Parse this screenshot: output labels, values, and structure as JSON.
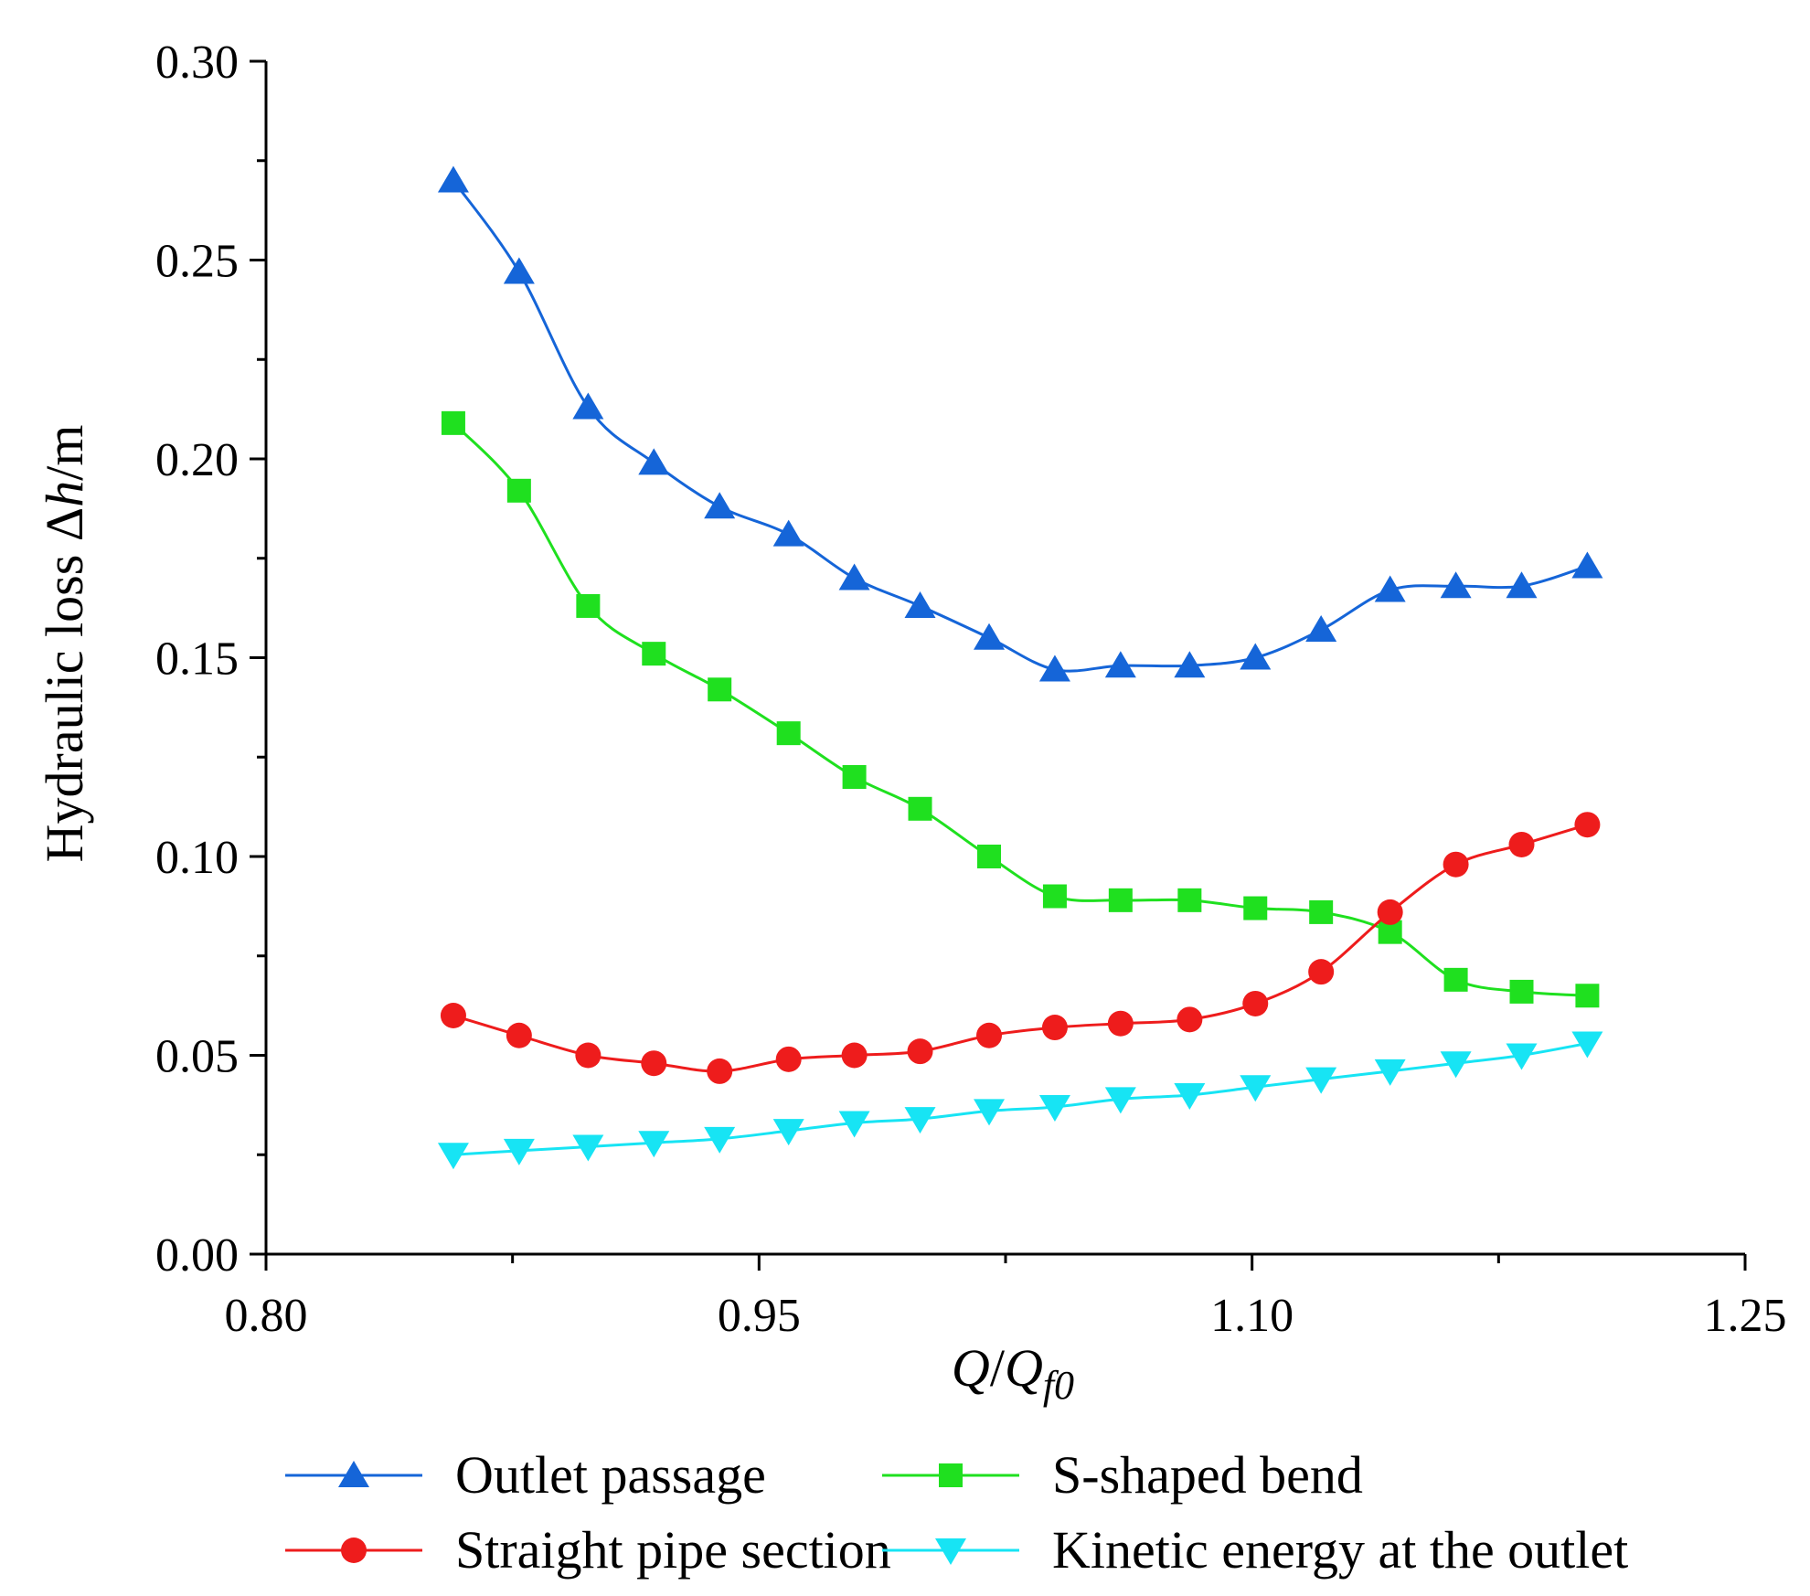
{
  "chart_data": {
    "type": "line",
    "xlabel_parts": [
      "Q",
      "/",
      "Q",
      "f0"
    ],
    "ylabel_parts": [
      "Hydraulic loss ",
      "Δ",
      "h",
      "/m"
    ],
    "xlim": [
      0.8,
      1.25
    ],
    "ylim": [
      0.0,
      0.3
    ],
    "x_ticks": [
      0.8,
      0.95,
      1.1,
      1.25
    ],
    "x_tick_labels": [
      "0.80",
      "0.95",
      "1.10",
      "1.25"
    ],
    "x_minor_ticks": [
      0.875,
      1.025,
      1.175
    ],
    "y_ticks": [
      0.0,
      0.05,
      0.1,
      0.15,
      0.2,
      0.25,
      0.3
    ],
    "y_tick_labels": [
      "0.00",
      "0.05",
      "0.10",
      "0.15",
      "0.20",
      "0.25",
      "0.30"
    ],
    "y_minor_ticks": [
      0.025,
      0.075,
      0.125,
      0.175,
      0.225,
      0.275
    ],
    "grid": false,
    "legend_position": "bottom",
    "x": [
      0.857,
      0.877,
      0.898,
      0.918,
      0.938,
      0.959,
      0.979,
      0.999,
      1.02,
      1.04,
      1.06,
      1.081,
      1.101,
      1.121,
      1.142,
      1.162,
      1.182,
      1.202
    ],
    "series": [
      {
        "name": "Outlet passage",
        "color": "#1565d8",
        "marker": "triangle-up",
        "values": [
          0.27,
          0.247,
          0.213,
          0.199,
          0.188,
          0.181,
          0.17,
          0.163,
          0.155,
          0.147,
          0.148,
          0.148,
          0.15,
          0.157,
          0.167,
          0.168,
          0.168,
          0.173
        ]
      },
      {
        "name": "S-shaped bend",
        "color": "#1fe01f",
        "marker": "square",
        "values": [
          0.209,
          0.192,
          0.163,
          0.151,
          0.142,
          0.131,
          0.12,
          0.112,
          0.1,
          0.09,
          0.089,
          0.089,
          0.087,
          0.086,
          0.081,
          0.069,
          0.066,
          0.065
        ]
      },
      {
        "name": "Straight pipe section",
        "color": "#ee1c1c",
        "marker": "circle",
        "values": [
          0.06,
          0.055,
          0.05,
          0.048,
          0.046,
          0.049,
          0.05,
          0.051,
          0.055,
          0.057,
          0.058,
          0.059,
          0.063,
          0.071,
          0.086,
          0.098,
          0.103,
          0.108
        ]
      },
      {
        "name": "Kinetic energy at the outlet",
        "color": "#17e4f4",
        "marker": "triangle-down",
        "values": [
          0.025,
          0.026,
          0.027,
          0.028,
          0.029,
          0.031,
          0.033,
          0.034,
          0.036,
          0.037,
          0.039,
          0.04,
          0.042,
          0.044,
          0.046,
          0.048,
          0.05,
          0.053
        ]
      }
    ]
  }
}
